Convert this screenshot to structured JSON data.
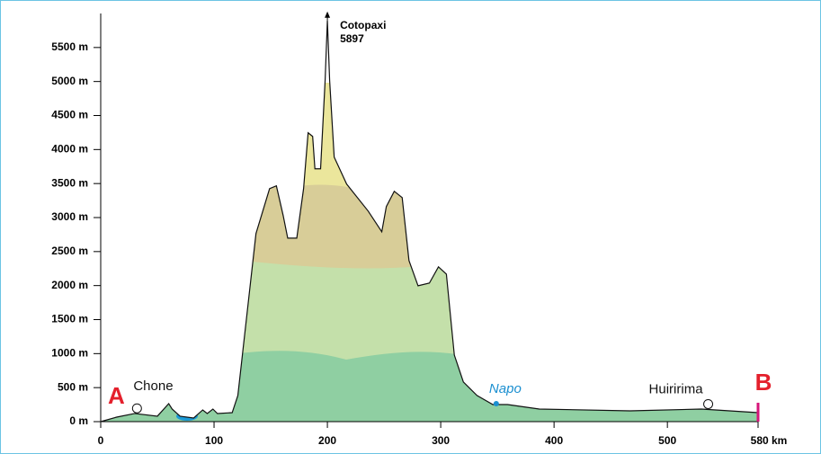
{
  "chart_data": {
    "type": "area",
    "x": [
      0,
      14,
      30,
      50,
      60,
      63,
      70,
      82,
      90,
      94,
      99,
      103,
      116,
      121,
      125,
      137,
      149,
      155,
      161,
      165,
      173,
      179,
      183,
      187,
      189,
      194,
      198,
      200,
      202,
      206,
      217,
      236,
      248,
      252,
      259,
      266,
      272,
      280,
      290,
      298,
      305,
      312,
      320,
      332,
      346,
      359,
      387,
      467,
      530,
      580
    ],
    "values": [
      0,
      66,
      120,
      80,
      265,
      185,
      80,
      53,
      172,
      119,
      185,
      119,
      132,
      384,
      979,
      2765,
      3426,
      3466,
      3029,
      2698,
      2698,
      3426,
      4246,
      4193,
      3717,
      3717,
      5013,
      5897,
      5013,
      3889,
      3492,
      3095,
      2791,
      3161,
      3386,
      3294,
      2368,
      1997,
      2037,
      2275,
      2169,
      979,
      582,
      384,
      251,
      251,
      185,
      159,
      185,
      132
    ],
    "xlim": [
      0,
      580
    ],
    "ylim": [
      0,
      6000
    ],
    "xticks": [
      0,
      100,
      200,
      300,
      400,
      500,
      {
        "value": 580,
        "label": "580 km"
      }
    ],
    "yticks": [
      {
        "value": 0,
        "label": "0 m"
      },
      {
        "value": 500,
        "label": "500 m"
      },
      {
        "value": 1000,
        "label": "1000 m"
      },
      {
        "value": 1500,
        "label": "1500 m"
      },
      {
        "value": 2000,
        "label": "2000 m"
      },
      {
        "value": 2500,
        "label": "2500 m"
      },
      {
        "value": 3000,
        "label": "3000 m"
      },
      {
        "value": 3500,
        "label": "3500 m"
      },
      {
        "value": 4000,
        "label": "4000 m"
      },
      {
        "value": 4500,
        "label": "4500 m"
      },
      {
        "value": 5000,
        "label": "5000 m"
      },
      {
        "value": 5500,
        "label": "5500 m"
      }
    ],
    "peak": {
      "name": "Cotopaxi",
      "x": 200,
      "value": 5897
    },
    "places": [
      {
        "text": "Chone",
        "x": 32
      },
      {
        "text": "Napo",
        "x": 349
      },
      {
        "text": "Huiririma",
        "x": 536
      }
    ],
    "start": {
      "text": "A",
      "x": 0
    },
    "end": {
      "text": "B",
      "x": 580
    }
  }
}
